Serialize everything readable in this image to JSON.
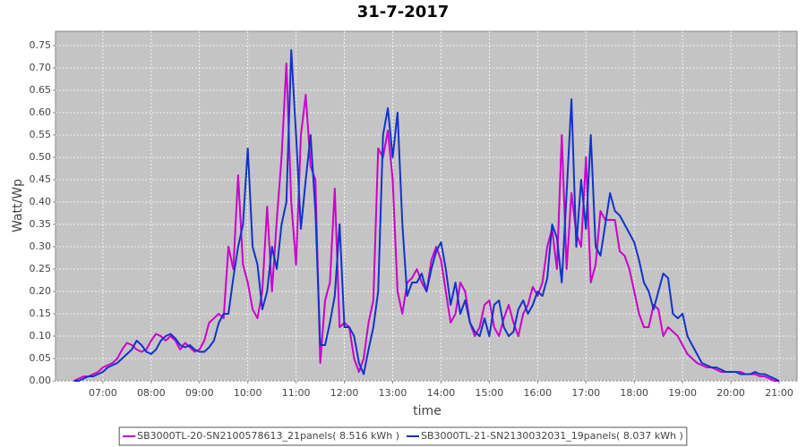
{
  "chart_data": {
    "type": "line",
    "title": "31-7-2017",
    "x_label": "time",
    "y_label": "Watt/Wp",
    "x": [
      6.4,
      6.5,
      6.6,
      6.7,
      6.8,
      6.9,
      7.0,
      7.1,
      7.2,
      7.3,
      7.4,
      7.5,
      7.6,
      7.7,
      7.8,
      7.9,
      8.0,
      8.1,
      8.2,
      8.3,
      8.4,
      8.5,
      8.6,
      8.7,
      8.8,
      8.9,
      9.0,
      9.1,
      9.2,
      9.3,
      9.4,
      9.5,
      9.6,
      9.7,
      9.8,
      9.9,
      10.0,
      10.1,
      10.2,
      10.3,
      10.4,
      10.5,
      10.6,
      10.7,
      10.8,
      10.9,
      11.0,
      11.1,
      11.2,
      11.3,
      11.4,
      11.5,
      11.6,
      11.7,
      11.8,
      11.9,
      12.0,
      12.1,
      12.2,
      12.3,
      12.4,
      12.5,
      12.6,
      12.7,
      12.8,
      12.9,
      13.0,
      13.1,
      13.2,
      13.3,
      13.4,
      13.5,
      13.6,
      13.7,
      13.8,
      13.9,
      14.0,
      14.1,
      14.2,
      14.3,
      14.4,
      14.5,
      14.6,
      14.7,
      14.8,
      14.9,
      15.0,
      15.1,
      15.2,
      15.3,
      15.4,
      15.5,
      15.6,
      15.7,
      15.8,
      15.9,
      16.0,
      16.1,
      16.2,
      16.3,
      16.4,
      16.5,
      16.6,
      16.7,
      16.8,
      16.9,
      17.0,
      17.1,
      17.2,
      17.3,
      17.4,
      17.5,
      17.6,
      17.7,
      17.8,
      17.9,
      18.0,
      18.1,
      18.2,
      18.3,
      18.4,
      18.5,
      18.6,
      18.7,
      18.8,
      18.9,
      19.0,
      19.1,
      19.2,
      19.3,
      19.4,
      19.5,
      19.6,
      19.7,
      19.8,
      19.9,
      20.0,
      20.1,
      20.2,
      20.3,
      20.4,
      20.5,
      20.6,
      20.7,
      20.8,
      20.9,
      21.0
    ],
    "series": [
      {
        "name": "SB3000TL-20-SN2100578613_21panels( 8.516 kWh )",
        "color": "#cc00cc",
        "values": [
          0,
          0.005,
          0.01,
          0.01,
          0.015,
          0.02,
          0.03,
          0.035,
          0.04,
          0.05,
          0.07,
          0.085,
          0.08,
          0.07,
          0.065,
          0.07,
          0.09,
          0.105,
          0.1,
          0.09,
          0.1,
          0.09,
          0.07,
          0.085,
          0.075,
          0.065,
          0.07,
          0.09,
          0.13,
          0.14,
          0.15,
          0.14,
          0.3,
          0.25,
          0.46,
          0.26,
          0.22,
          0.16,
          0.14,
          0.2,
          0.39,
          0.2,
          0.36,
          0.5,
          0.71,
          0.4,
          0.26,
          0.55,
          0.64,
          0.48,
          0.45,
          0.04,
          0.18,
          0.22,
          0.43,
          0.12,
          0.13,
          0.12,
          0.05,
          0.02,
          0.05,
          0.13,
          0.18,
          0.52,
          0.5,
          0.56,
          0.45,
          0.2,
          0.15,
          0.22,
          0.23,
          0.25,
          0.22,
          0.2,
          0.27,
          0.3,
          0.27,
          0.2,
          0.13,
          0.15,
          0.22,
          0.2,
          0.13,
          0.1,
          0.12,
          0.17,
          0.18,
          0.12,
          0.1,
          0.14,
          0.17,
          0.13,
          0.1,
          0.15,
          0.17,
          0.21,
          0.19,
          0.22,
          0.3,
          0.34,
          0.25,
          0.55,
          0.25,
          0.42,
          0.33,
          0.3,
          0.5,
          0.22,
          0.26,
          0.38,
          0.36,
          0.36,
          0.36,
          0.29,
          0.28,
          0.25,
          0.2,
          0.15,
          0.12,
          0.12,
          0.17,
          0.16,
          0.1,
          0.12,
          0.11,
          0.1,
          0.08,
          0.06,
          0.05,
          0.04,
          0.035,
          0.03,
          0.03,
          0.025,
          0.02,
          0.02,
          0.02,
          0.02,
          0.02,
          0.015,
          0.015,
          0.015,
          0.01,
          0.01,
          0.005,
          0,
          0
        ]
      },
      {
        "name": "SB3000TL-21-SN2130032031_19panels( 8.037 kWh )",
        "color": "#1133cc",
        "values": [
          0,
          0,
          0.005,
          0.01,
          0.01,
          0.015,
          0.02,
          0.03,
          0.035,
          0.04,
          0.05,
          0.06,
          0.07,
          0.09,
          0.08,
          0.065,
          0.06,
          0.07,
          0.09,
          0.1,
          0.105,
          0.095,
          0.08,
          0.075,
          0.08,
          0.07,
          0.065,
          0.065,
          0.075,
          0.09,
          0.13,
          0.15,
          0.15,
          0.23,
          0.3,
          0.35,
          0.52,
          0.3,
          0.26,
          0.16,
          0.2,
          0.3,
          0.25,
          0.35,
          0.4,
          0.74,
          0.55,
          0.34,
          0.45,
          0.55,
          0.38,
          0.08,
          0.08,
          0.13,
          0.19,
          0.35,
          0.12,
          0.12,
          0.1,
          0.04,
          0.015,
          0.07,
          0.12,
          0.2,
          0.55,
          0.61,
          0.5,
          0.6,
          0.35,
          0.19,
          0.22,
          0.22,
          0.24,
          0.2,
          0.25,
          0.29,
          0.31,
          0.25,
          0.17,
          0.22,
          0.15,
          0.18,
          0.13,
          0.11,
          0.1,
          0.14,
          0.1,
          0.17,
          0.18,
          0.12,
          0.1,
          0.11,
          0.16,
          0.18,
          0.15,
          0.17,
          0.2,
          0.19,
          0.23,
          0.35,
          0.32,
          0.22,
          0.42,
          0.63,
          0.3,
          0.45,
          0.34,
          0.55,
          0.3,
          0.28,
          0.35,
          0.42,
          0.38,
          0.37,
          0.35,
          0.33,
          0.31,
          0.27,
          0.22,
          0.2,
          0.16,
          0.2,
          0.24,
          0.23,
          0.15,
          0.14,
          0.15,
          0.1,
          0.08,
          0.06,
          0.04,
          0.035,
          0.03,
          0.03,
          0.025,
          0.02,
          0.02,
          0.02,
          0.015,
          0.015,
          0.015,
          0.02,
          0.015,
          0.015,
          0.01,
          0.005,
          0
        ]
      }
    ],
    "xlim": [
      6.02,
      21.37
    ],
    "xticks": [
      {
        "value": 7,
        "label": "07:00"
      },
      {
        "value": 8,
        "label": "08:00"
      },
      {
        "value": 9,
        "label": "09:00"
      },
      {
        "value": 10,
        "label": "10:00"
      },
      {
        "value": 11,
        "label": "11:00"
      },
      {
        "value": 12,
        "label": "12:00"
      },
      {
        "value": 13,
        "label": "13:00"
      },
      {
        "value": 14,
        "label": "14:00"
      },
      {
        "value": 15,
        "label": "15:00"
      },
      {
        "value": 16,
        "label": "16:00"
      },
      {
        "value": 17,
        "label": "17:00"
      },
      {
        "value": 18,
        "label": "18:00"
      },
      {
        "value": 19,
        "label": "19:00"
      },
      {
        "value": 20,
        "label": "20:00"
      },
      {
        "value": 21,
        "label": "21:00"
      }
    ],
    "ylim": [
      0,
      0.782
    ],
    "yticks": [
      {
        "value": 0,
        "label": "0.00"
      },
      0.05,
      {
        "value": 0.1,
        "label": "0.10"
      },
      0.15,
      {
        "value": 0.2,
        "label": "0.20"
      },
      0.25,
      {
        "value": 0.3,
        "label": "0.30"
      },
      0.35,
      {
        "value": 0.4,
        "label": "0.40"
      },
      0.45,
      {
        "value": 0.5,
        "label": "0.50"
      },
      0.55,
      {
        "value": 0.6,
        "label": "0.60"
      },
      0.65,
      {
        "value": 0.7,
        "label": "0.70"
      },
      0.75
    ],
    "grid": true,
    "legend": "bottom"
  }
}
